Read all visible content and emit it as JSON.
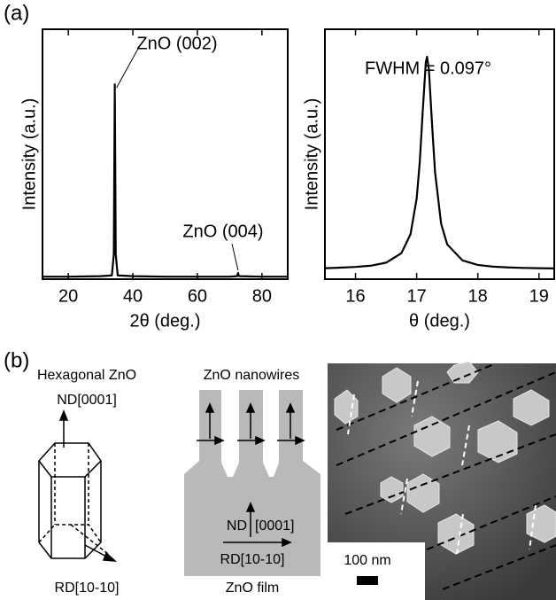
{
  "panel_a_label": "(a)",
  "chart_data": [
    {
      "type": "line",
      "xlabel": "2θ (deg.)",
      "ylabel": "Intensity (a.u.)",
      "x": [
        12,
        20,
        30,
        33.5,
        34.1,
        34.4,
        34.7,
        35.3,
        40,
        50,
        60,
        70,
        72.3,
        72.6,
        72.9,
        80,
        88
      ],
      "values": [
        0.01,
        0.01,
        0.012,
        0.015,
        0.1,
        0.78,
        0.1,
        0.015,
        0.012,
        0.01,
        0.01,
        0.01,
        0.012,
        0.025,
        0.012,
        0.01,
        0.01
      ],
      "color": "#000000",
      "xlim": [
        12,
        88
      ],
      "ylim": [
        0,
        1
      ],
      "xticks": [
        20,
        40,
        60,
        80
      ],
      "annotations": [
        "ZnO (002)",
        "ZnO (004)"
      ]
    },
    {
      "type": "line",
      "xlabel": "θ (deg.)",
      "ylabel": "Intensity (a.u.)",
      "x": [
        15.5,
        15.75,
        16,
        16.25,
        16.5,
        16.75,
        16.9,
        17.0,
        17.05,
        17.1,
        17.15,
        17.17,
        17.2,
        17.25,
        17.3,
        17.4,
        17.5,
        17.75,
        18,
        18.25,
        18.5,
        18.75,
        19,
        19.25
      ],
      "values": [
        0.044,
        0.046,
        0.049,
        0.054,
        0.066,
        0.104,
        0.18,
        0.322,
        0.465,
        0.674,
        0.867,
        0.89,
        0.84,
        0.628,
        0.431,
        0.222,
        0.139,
        0.075,
        0.057,
        0.05,
        0.047,
        0.045,
        0.044,
        0.043
      ],
      "color": "#000000",
      "xlim": [
        15.5,
        19.25
      ],
      "ylim": [
        0,
        1
      ],
      "xticks": [
        16,
        17,
        18,
        19
      ],
      "annotations": [
        "FWHM = 0.097°"
      ]
    }
  ],
  "panel_b": {
    "label": "(b)",
    "hexagonal": {
      "title": "Hexagonal ZnO",
      "nd": "ND[0001]",
      "rd": "RD[10-10]"
    },
    "nanowires": {
      "title": "ZnO nanowires",
      "nd": "ND",
      "nd_dir": "[0001]",
      "rd": "RD[10-10]",
      "film": "ZnO film"
    },
    "sem": {
      "scale": "100 nm"
    }
  }
}
